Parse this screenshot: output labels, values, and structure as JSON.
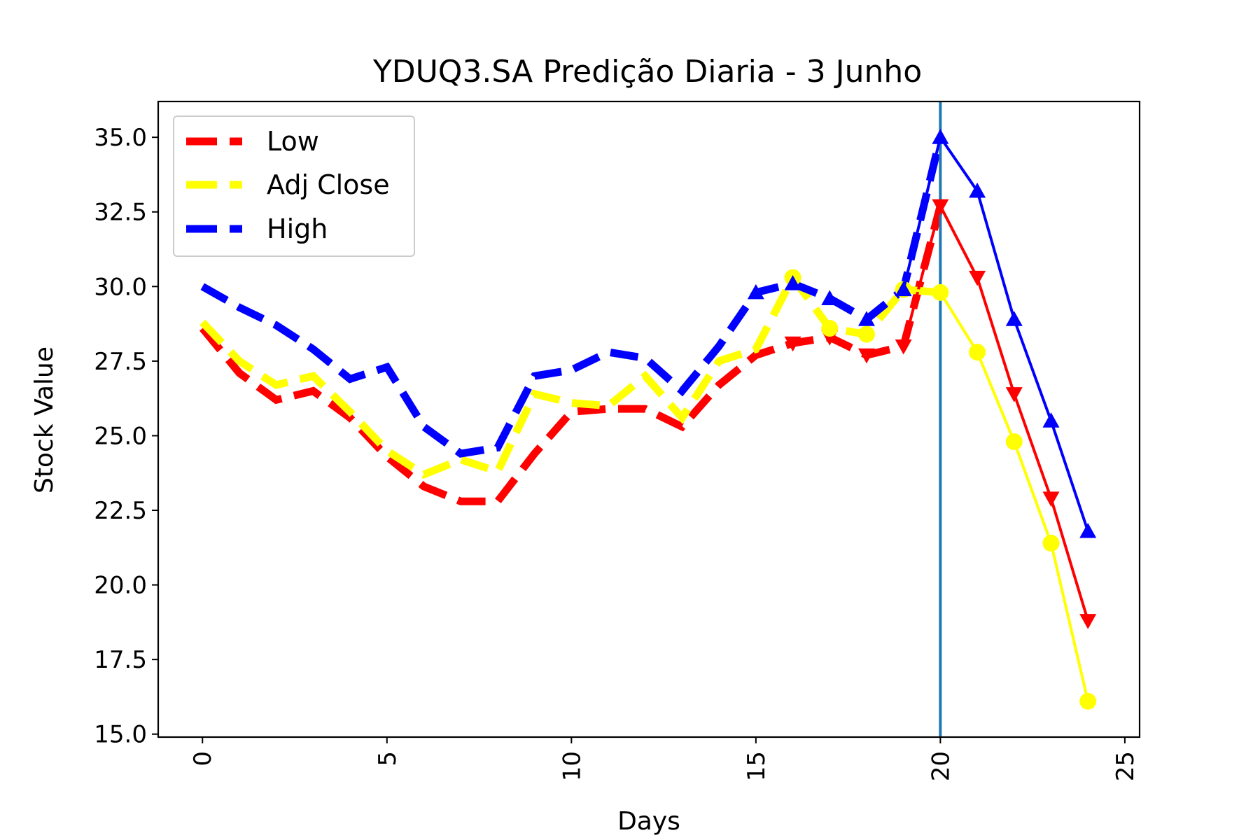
{
  "chart_data": {
    "type": "line",
    "title": "YDUQ3.SA Predição Diaria - 3 Junho",
    "xlabel": "Days",
    "ylabel": "Stock Value",
    "xlim": [
      -1.2,
      25.4
    ],
    "ylim": [
      14.9,
      36.2
    ],
    "xticks": [
      0,
      5,
      10,
      15,
      20,
      25
    ],
    "xtick_labels": [
      "0",
      "5",
      "10",
      "15",
      "20",
      "25"
    ],
    "xtick_rotation": -90,
    "yticks": [
      15.0,
      17.5,
      20.0,
      22.5,
      25.0,
      27.5,
      30.0,
      32.5,
      35.0
    ],
    "ytick_labels": [
      "15.0",
      "17.5",
      "20.0",
      "22.5",
      "25.0",
      "27.5",
      "30.0",
      "32.5",
      "35.0"
    ],
    "grid": false,
    "legend_position": "top-left",
    "vline": {
      "x": 20,
      "color": "#1f77b4"
    },
    "historical": {
      "style": "dashed",
      "x": [
        0,
        1,
        2,
        3,
        4,
        5,
        6,
        7,
        8,
        9,
        10,
        11,
        12,
        13,
        14,
        15,
        16,
        17,
        18,
        19,
        20
      ],
      "series": [
        {
          "name": "Low",
          "color": "#ff0000",
          "values": [
            28.6,
            27.1,
            26.2,
            26.5,
            25.6,
            24.3,
            23.3,
            22.8,
            22.8,
            24.4,
            25.8,
            25.9,
            25.9,
            25.3,
            26.7,
            27.7,
            28.1,
            28.3,
            27.7,
            28.0,
            32.7
          ]
        },
        {
          "name": "Adj Close",
          "color": "#ffff00",
          "values": [
            28.8,
            27.5,
            26.7,
            27.0,
            25.8,
            24.5,
            23.7,
            24.2,
            23.8,
            26.4,
            26.1,
            26.0,
            27.0,
            25.6,
            27.5,
            27.9,
            30.3,
            28.6,
            28.4,
            29.9,
            29.8
          ]
        },
        {
          "name": "High",
          "color": "#0000ff",
          "values": [
            30.0,
            29.3,
            28.7,
            27.9,
            26.9,
            27.3,
            25.3,
            24.4,
            24.6,
            27.0,
            27.2,
            27.8,
            27.6,
            26.5,
            28.0,
            29.8,
            30.1,
            29.6,
            28.9,
            29.9,
            35.0
          ]
        }
      ]
    },
    "predicted": {
      "style": "solid-markers",
      "x": [
        19,
        20,
        21,
        22,
        23,
        24
      ],
      "series": [
        {
          "name": "Low",
          "color": "#ff0000",
          "marker": "triangle-down",
          "values": [
            28.0,
            32.7,
            30.3,
            26.4,
            22.9,
            18.8
          ]
        },
        {
          "name": "Adj Close",
          "color": "#ffff00",
          "marker": "circle",
          "values": [
            29.9,
            29.8,
            27.8,
            24.8,
            21.4,
            16.1
          ]
        },
        {
          "name": "High",
          "color": "#0000ff",
          "marker": "triangle-up",
          "values": [
            29.9,
            35.0,
            33.2,
            28.9,
            25.5,
            21.8
          ]
        }
      ],
      "extra_markers": [
        {
          "series": "Low",
          "x": [
            16,
            17,
            18
          ],
          "values": [
            28.1,
            28.3,
            27.7
          ]
        },
        {
          "series": "Adj Close",
          "x": [
            16,
            17,
            18
          ],
          "values": [
            30.3,
            28.6,
            28.4
          ]
        },
        {
          "series": "High",
          "x": [
            15,
            16,
            17,
            18
          ],
          "values": [
            29.8,
            30.1,
            29.6,
            28.9
          ]
        }
      ]
    },
    "legend": [
      {
        "label": "Low",
        "color": "#ff0000"
      },
      {
        "label": "Adj Close",
        "color": "#ffff00"
      },
      {
        "label": "High",
        "color": "#0000ff"
      }
    ]
  }
}
